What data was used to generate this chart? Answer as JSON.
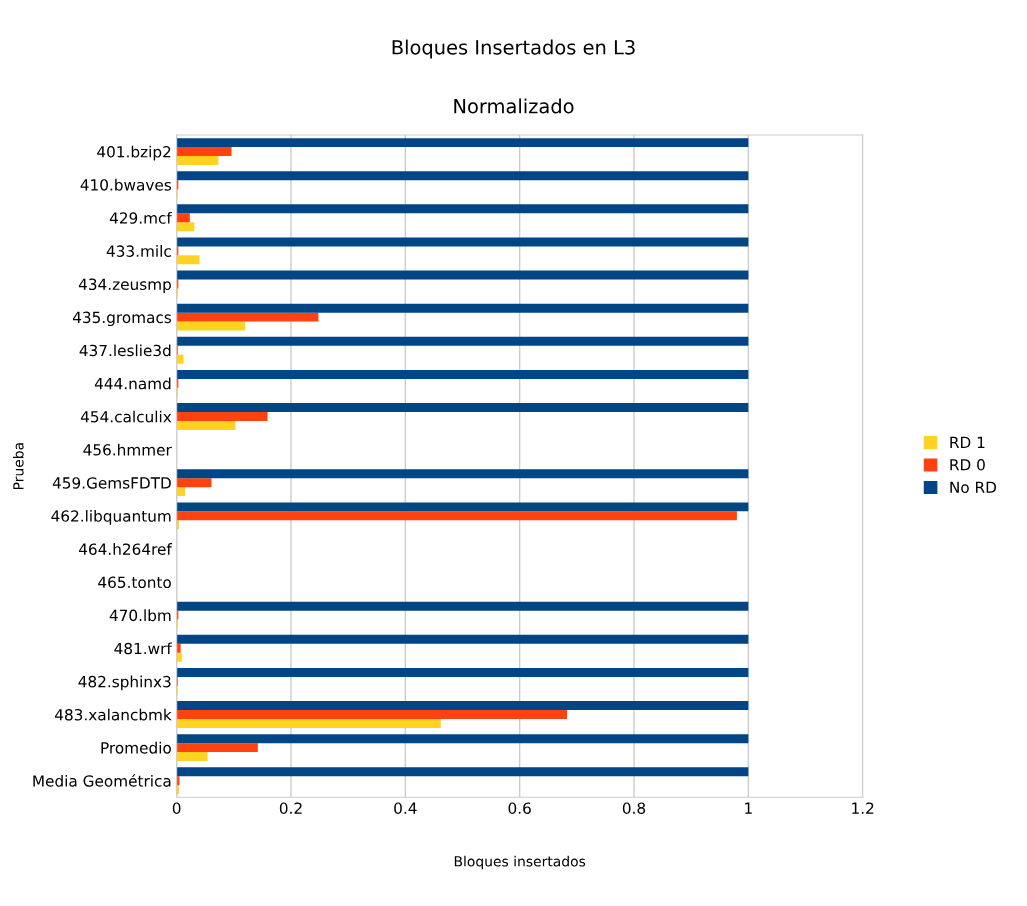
{
  "chart_data": {
    "type": "bar",
    "orientation": "horizontal",
    "title": "Bloques Insertados en L3",
    "subtitle": "Normalizado",
    "xlabel": "Bloques insertados",
    "ylabel": "Prueba",
    "categories": [
      "401.bzip2",
      "410.bwaves",
      "429.mcf",
      "433.milc",
      "434.zeusmp",
      "435.gromacs",
      "437.leslie3d",
      "444.namd",
      "454.calculix",
      "456.hmmer",
      "459.GemsFDTD",
      "462.libquantum",
      "464.h264ref",
      "465.tonto",
      "470.lbm",
      "481.wrf",
      "482.sphinx3",
      "483.xalancbmk",
      "Promedio",
      "Media Geométrica"
    ],
    "series": [
      {
        "name": "RD 1",
        "color": "#ffd320",
        "values": [
          0.073,
          0.002,
          0.031,
          0.04,
          0.002,
          0.12,
          0.012,
          0.002,
          0.103,
          null,
          0.015,
          0.004,
          null,
          null,
          0.002,
          0.009,
          0.002,
          0.462,
          0.054,
          0.004
        ]
      },
      {
        "name": "RD 0",
        "color": "#ff420e",
        "values": [
          0.096,
          0.003,
          0.023,
          0.003,
          0.003,
          0.248,
          0.002,
          0.003,
          0.159,
          null,
          0.061,
          0.98,
          null,
          null,
          0.003,
          0.007,
          0.002,
          0.683,
          0.142,
          0.005
        ]
      },
      {
        "name": "No RD",
        "color": "#004586",
        "values": [
          1,
          1,
          1,
          1,
          1,
          1,
          1,
          1,
          1,
          null,
          1,
          1,
          null,
          null,
          1,
          1,
          1,
          1,
          1,
          1
        ]
      }
    ],
    "xlim": [
      0,
      1.2
    ],
    "xticks": [
      0,
      0.2,
      0.4,
      0.6,
      0.8,
      1,
      1.2
    ],
    "grid": "x",
    "legend": "right"
  }
}
